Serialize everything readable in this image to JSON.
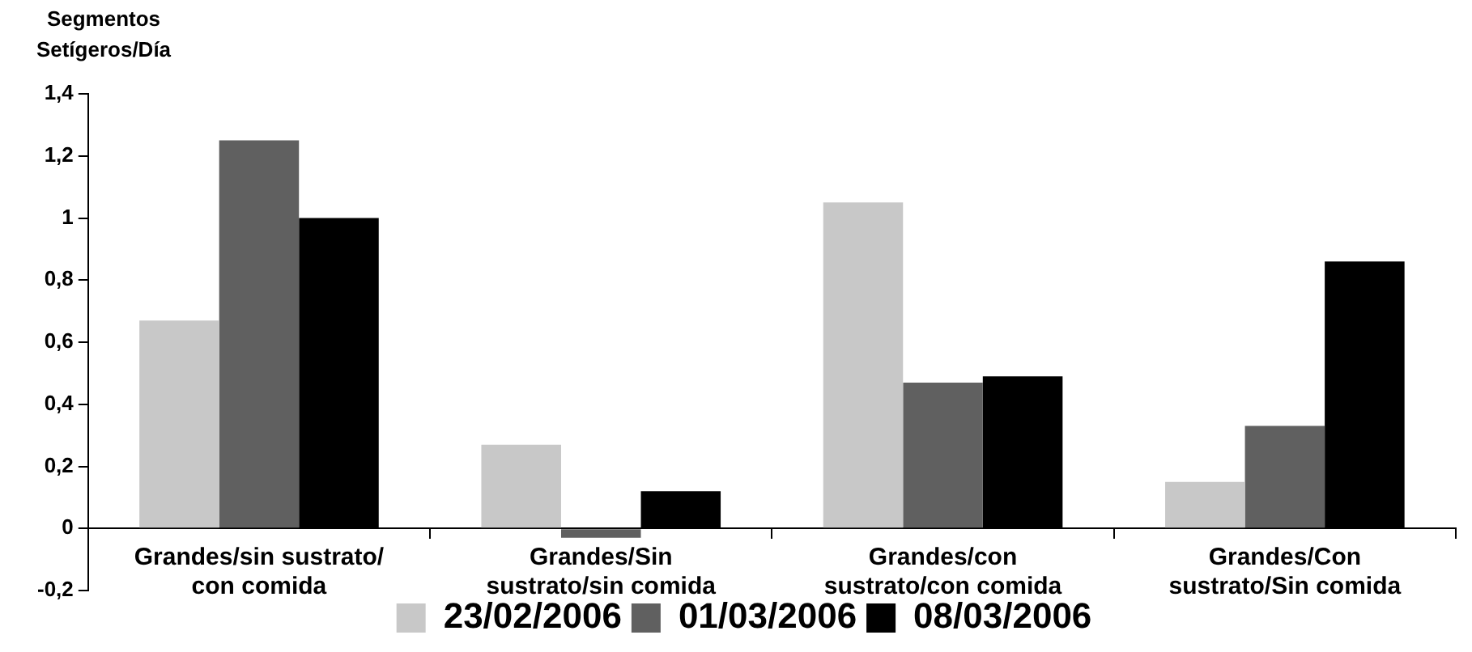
{
  "chart_data": {
    "type": "bar",
    "ylabel": "Segmentos Setígeros/Día",
    "categories": [
      "Grandes/sin sustrato/ con comida",
      "Grandes/Sin sustrato/sin comida",
      "Grandes/con sustrato/con comida",
      "Grandes/Con sustrato/Sin comida"
    ],
    "series": [
      {
        "name": "23/02/2006",
        "color": "#c8c8c8",
        "values": [
          0.67,
          0.27,
          1.05,
          0.15
        ]
      },
      {
        "name": "01/03/2006",
        "color": "#606060",
        "values": [
          1.25,
          -0.03,
          0.47,
          0.33
        ]
      },
      {
        "name": "08/03/2006",
        "color": "#000000",
        "values": [
          1.0,
          0.12,
          0.49,
          0.86
        ]
      }
    ],
    "ylim": [
      -0.2,
      1.4
    ],
    "yticks": [
      {
        "value": -0.2,
        "label": "-0,2"
      },
      0,
      {
        "value": 0.2,
        "label": "0,2"
      },
      {
        "value": 0.4,
        "label": "0,4"
      },
      {
        "value": 0.6,
        "label": "0,6"
      },
      {
        "value": 0.8,
        "label": "0,8"
      },
      1,
      {
        "value": 1.2,
        "label": "1,2"
      },
      {
        "value": 1.4,
        "label": "1,4"
      }
    ],
    "grid": false,
    "legend": "bottom"
  }
}
